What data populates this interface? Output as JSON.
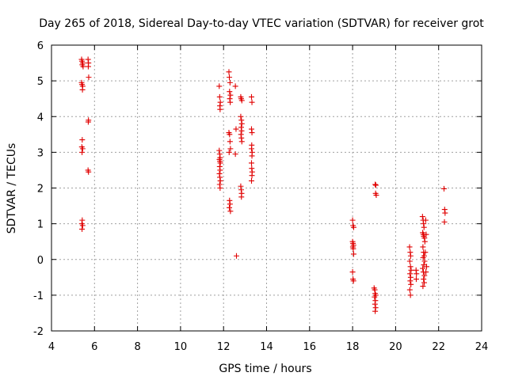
{
  "chart_data": {
    "type": "scatter",
    "title": "Day 265 of 2018, Sidereal Day-to-day VTEC variation (SDTVAR) for receiver grot",
    "xlabel": "GPS time / hours",
    "ylabel": "SDTVAR / TECUs",
    "xlim": [
      4,
      24
    ],
    "ylim": [
      -2,
      6
    ],
    "xticks": [
      "4",
      "6",
      "8",
      "10",
      "12",
      "14",
      "16",
      "18",
      "20",
      "22",
      "24"
    ],
    "yticks": [
      "-2",
      "-1",
      "0",
      "1",
      "2",
      "3",
      "4",
      "5",
      "6"
    ],
    "grid": true,
    "marker": "+",
    "color": "#e00000",
    "series": [
      {
        "name": "SDTVAR",
        "points": [
          [
            5.4,
            5.6
          ],
          [
            5.42,
            5.55
          ],
          [
            5.45,
            5.5
          ],
          [
            5.43,
            5.45
          ],
          [
            5.47,
            5.4
          ],
          [
            5.4,
            4.95
          ],
          [
            5.42,
            4.9
          ],
          [
            5.45,
            4.85
          ],
          [
            5.44,
            4.75
          ],
          [
            5.43,
            3.35
          ],
          [
            5.41,
            3.15
          ],
          [
            5.45,
            3.1
          ],
          [
            5.42,
            3.0
          ],
          [
            5.43,
            1.1
          ],
          [
            5.41,
            1.0
          ],
          [
            5.45,
            0.95
          ],
          [
            5.42,
            0.85
          ],
          [
            5.7,
            5.6
          ],
          [
            5.72,
            5.5
          ],
          [
            5.71,
            5.4
          ],
          [
            5.73,
            5.1
          ],
          [
            5.72,
            3.9
          ],
          [
            5.71,
            3.85
          ],
          [
            5.7,
            2.5
          ],
          [
            5.72,
            2.45
          ],
          [
            11.8,
            4.85
          ],
          [
            11.82,
            4.55
          ],
          [
            11.85,
            4.4
          ],
          [
            11.83,
            4.3
          ],
          [
            11.84,
            4.2
          ],
          [
            11.8,
            3.05
          ],
          [
            11.82,
            2.95
          ],
          [
            11.84,
            2.85
          ],
          [
            11.81,
            2.8
          ],
          [
            11.83,
            2.75
          ],
          [
            11.85,
            2.7
          ],
          [
            11.82,
            2.6
          ],
          [
            11.84,
            2.5
          ],
          [
            11.81,
            2.4
          ],
          [
            11.83,
            2.3
          ],
          [
            11.85,
            2.2
          ],
          [
            11.82,
            2.1
          ],
          [
            11.84,
            2.0
          ],
          [
            12.25,
            5.25
          ],
          [
            12.27,
            5.1
          ],
          [
            12.3,
            4.95
          ],
          [
            12.28,
            4.7
          ],
          [
            12.32,
            4.6
          ],
          [
            12.29,
            4.5
          ],
          [
            12.31,
            4.4
          ],
          [
            12.25,
            3.55
          ],
          [
            12.28,
            3.5
          ],
          [
            12.3,
            3.3
          ],
          [
            12.32,
            3.1
          ],
          [
            12.26,
            3.0
          ],
          [
            12.28,
            1.65
          ],
          [
            12.3,
            1.55
          ],
          [
            12.27,
            1.45
          ],
          [
            12.32,
            1.35
          ],
          [
            12.55,
            4.85
          ],
          [
            12.58,
            3.65
          ],
          [
            12.55,
            2.95
          ],
          [
            12.6,
            0.1
          ],
          [
            12.8,
            4.55
          ],
          [
            12.82,
            4.5
          ],
          [
            12.85,
            4.45
          ],
          [
            12.8,
            4.0
          ],
          [
            12.83,
            3.9
          ],
          [
            12.85,
            3.8
          ],
          [
            12.82,
            3.7
          ],
          [
            12.84,
            3.6
          ],
          [
            12.81,
            3.5
          ],
          [
            12.83,
            3.4
          ],
          [
            12.85,
            3.3
          ],
          [
            12.8,
            2.05
          ],
          [
            12.82,
            1.95
          ],
          [
            12.84,
            1.85
          ],
          [
            12.83,
            1.75
          ],
          [
            13.3,
            4.55
          ],
          [
            13.32,
            4.4
          ],
          [
            13.3,
            3.65
          ],
          [
            13.32,
            3.55
          ],
          [
            13.31,
            3.2
          ],
          [
            13.3,
            3.1
          ],
          [
            13.33,
            3.0
          ],
          [
            13.32,
            2.9
          ],
          [
            13.3,
            2.7
          ],
          [
            13.31,
            2.55
          ],
          [
            13.33,
            2.45
          ],
          [
            13.32,
            2.35
          ],
          [
            13.3,
            2.2
          ],
          [
            18.0,
            1.1
          ],
          [
            18.02,
            0.95
          ],
          [
            18.05,
            0.9
          ],
          [
            18.0,
            0.5
          ],
          [
            18.02,
            0.45
          ],
          [
            18.04,
            0.4
          ],
          [
            18.01,
            0.35
          ],
          [
            18.03,
            0.3
          ],
          [
            18.05,
            0.15
          ],
          [
            18.0,
            -0.35
          ],
          [
            18.02,
            -0.55
          ],
          [
            18.04,
            -0.6
          ],
          [
            19.05,
            2.1
          ],
          [
            19.08,
            2.08
          ],
          [
            19.1,
            1.8
          ],
          [
            19.07,
            1.85
          ],
          [
            19.0,
            -0.8
          ],
          [
            19.03,
            -0.85
          ],
          [
            19.05,
            -0.95
          ],
          [
            19.08,
            -1.0
          ],
          [
            19.02,
            -1.05
          ],
          [
            19.06,
            -1.15
          ],
          [
            19.04,
            -1.25
          ],
          [
            19.07,
            -1.35
          ],
          [
            19.05,
            -1.45
          ],
          [
            20.65,
            0.35
          ],
          [
            20.68,
            0.2
          ],
          [
            20.7,
            0.1
          ],
          [
            20.66,
            -0.05
          ],
          [
            20.69,
            -0.2
          ],
          [
            20.72,
            -0.3
          ],
          [
            20.67,
            -0.4
          ],
          [
            20.7,
            -0.5
          ],
          [
            20.68,
            -0.6
          ],
          [
            20.71,
            -0.7
          ],
          [
            20.66,
            -0.85
          ],
          [
            20.69,
            -1.0
          ],
          [
            20.95,
            -0.3
          ],
          [
            20.97,
            -0.4
          ],
          [
            20.96,
            -0.55
          ],
          [
            21.25,
            1.2
          ],
          [
            21.28,
            1.1
          ],
          [
            21.3,
            1.0
          ],
          [
            21.32,
            0.9
          ],
          [
            21.26,
            0.75
          ],
          [
            21.29,
            0.7
          ],
          [
            21.31,
            0.65
          ],
          [
            21.34,
            0.6
          ],
          [
            21.36,
            0.5
          ],
          [
            21.27,
            0.35
          ],
          [
            21.3,
            0.2
          ],
          [
            21.33,
            0.1
          ],
          [
            21.28,
            0.05
          ],
          [
            21.35,
            -0.05
          ],
          [
            21.31,
            -0.15
          ],
          [
            21.26,
            -0.25
          ],
          [
            21.29,
            -0.35
          ],
          [
            21.34,
            -0.45
          ],
          [
            21.3,
            -0.55
          ],
          [
            21.33,
            -0.65
          ],
          [
            21.27,
            -0.75
          ],
          [
            21.4,
            1.1
          ],
          [
            21.42,
            0.7
          ],
          [
            21.38,
            0.2
          ],
          [
            21.44,
            -0.2
          ],
          [
            21.41,
            -0.35
          ],
          [
            22.25,
            1.98
          ],
          [
            22.28,
            1.4
          ],
          [
            22.3,
            1.3
          ],
          [
            22.27,
            1.05
          ]
        ]
      }
    ]
  }
}
